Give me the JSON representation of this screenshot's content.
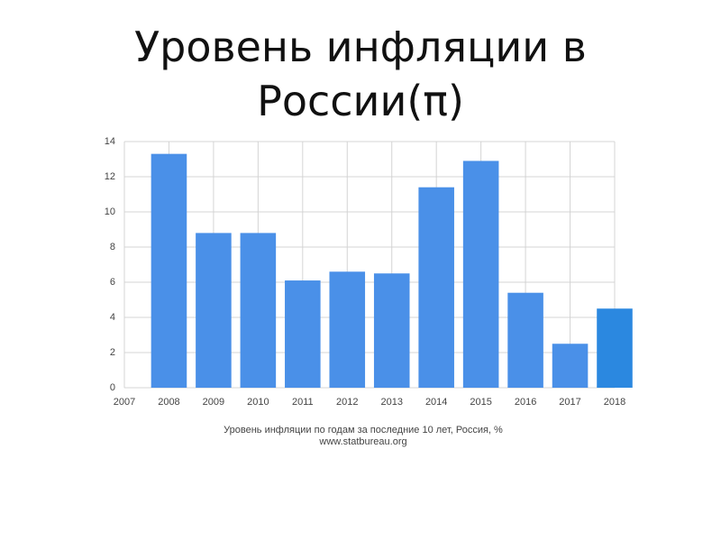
{
  "chart_data": {
    "type": "bar",
    "title": "Уровень инфляции в России(π)",
    "caption": "Уровень инфляции по годам за последние 10 лет, Россия, %",
    "source": "www.statbureau.org",
    "x": [
      2008,
      2009,
      2010,
      2011,
      2012,
      2013,
      2014,
      2015,
      2016,
      2017,
      2018
    ],
    "values": [
      13.3,
      8.8,
      8.8,
      6.1,
      6.6,
      6.5,
      11.4,
      12.9,
      5.4,
      2.5,
      4.5
    ],
    "colors": [
      "#4a90e8",
      "#4a90e8",
      "#4a90e8",
      "#4a90e8",
      "#4a90e8",
      "#4a90e8",
      "#4a90e8",
      "#4a90e8",
      "#4a90e8",
      "#4a90e8",
      "#2b88e0"
    ],
    "xlim": [
      2007,
      2018
    ],
    "xticks": [
      2007,
      2008,
      2009,
      2010,
      2011,
      2012,
      2013,
      2014,
      2015,
      2016,
      2017,
      2018
    ],
    "ylim": [
      0,
      14
    ],
    "yticks": [
      0,
      2,
      4,
      6,
      8,
      10,
      12,
      14
    ],
    "grid": true
  }
}
